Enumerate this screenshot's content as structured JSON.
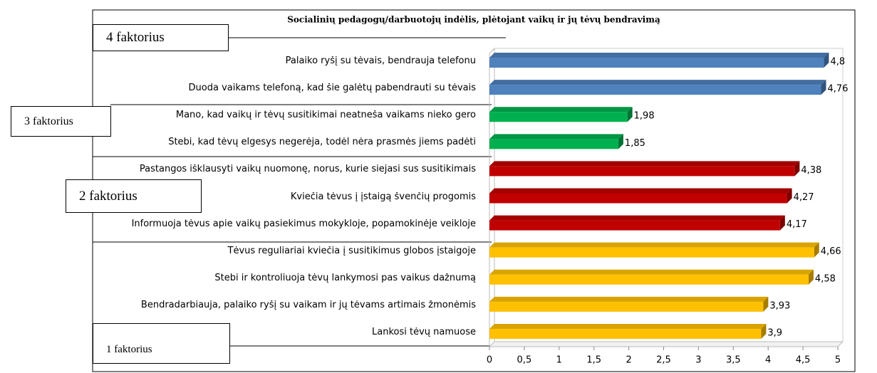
{
  "chart_data": {
    "type": "bar",
    "orientation": "horizontal",
    "title": "Socialinių pedagogų/darbuotojų indėlis, plėtojant vaikų ir jų tėvų bendravimą",
    "categories": [
      "Palaiko ryšį su tėvais, bendrauja telefonu",
      "Duoda vaikams telefoną, kad šie galėtų pabendrauti su tėvais",
      "Mano, kad vaikų ir tėvų susitikimai neatneša vaikams nieko gero",
      "Stebi, kad tėvų elgesys  negerėja, todėl nėra prasmės jiems padėti",
      "Pastangos išklausyti vaikų nuomonę, norus, kurie siejasi sus susitikimais",
      "Kviečia tėvus į įstaigą švenčių progomis",
      "Informuoja tėvus apie vaikų pasiekimus mokykloje, popamokinėje veikloje",
      "Tėvus reguliariai kviečia į susitikimus globos įstaigoje",
      "Stebi ir kontroliuoja tėvų lankymosi pas vaikus dažnumą",
      "Bendradarbiauja, palaiko ryšį su  vaikam ir jų tėvams artimais žmonėmis",
      "Lankosi tėvų namuose"
    ],
    "values": [
      4.8,
      4.76,
      1.98,
      1.85,
      4.38,
      4.27,
      4.17,
      4.66,
      4.58,
      3.93,
      3.9
    ],
    "value_labels": [
      "4,8",
      "4,76",
      "1,98",
      "1,85",
      "4,38",
      "4,27",
      "4,17",
      "4,66",
      "4,58",
      "3,93",
      "3,9"
    ],
    "colors": [
      "#4f81bd",
      "#4f81bd",
      "#00b050",
      "#00b050",
      "#c00000",
      "#c00000",
      "#c00000",
      "#ffc000",
      "#ffc000",
      "#ffc000",
      "#ffc000"
    ],
    "xlim": [
      0,
      5
    ],
    "xticks": [
      0,
      {
        "value": 0.5,
        "label": "0,5"
      },
      1,
      {
        "value": 1.5,
        "label": "1,5"
      },
      2,
      {
        "value": 2.5,
        "label": "2,5"
      },
      3,
      {
        "value": 3.5,
        "label": "3,5"
      },
      4,
      {
        "value": 4.5,
        "label": "4,5"
      },
      5
    ],
    "grid": false,
    "annotations": [
      "4 faktorius",
      "3 faktorius",
      "2 faktorius",
      "1 faktorius"
    ]
  }
}
